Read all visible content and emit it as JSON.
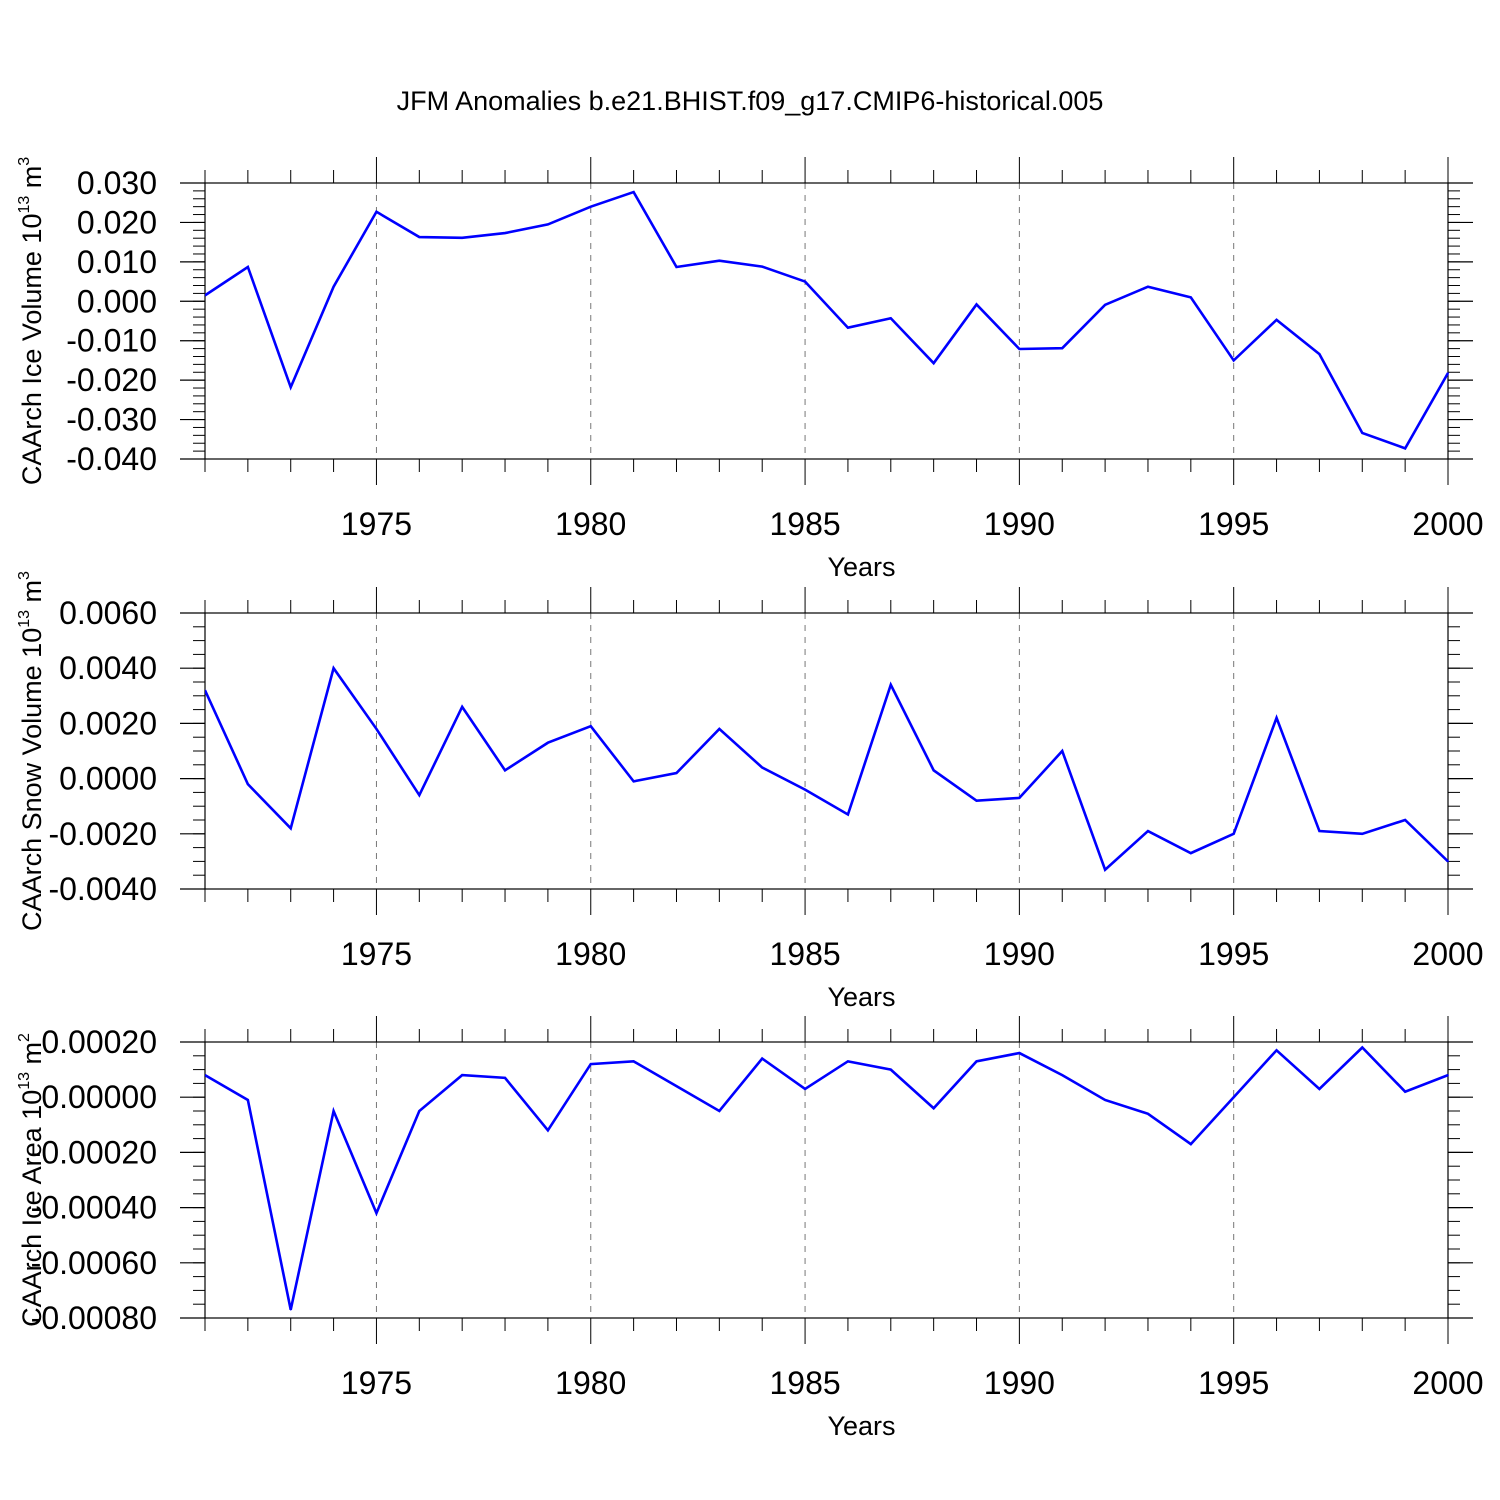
{
  "title": "JFM Anomalies b.e21.BHIST.f09_g17.CMIP6-historical.005",
  "colors": {
    "line": "#0000ff",
    "axis": "#000000",
    "grid": "#777777"
  },
  "chart_data": [
    {
      "type": "line",
      "ylabel_main": "CAArch Ice Volume 10",
      "ylabel_sup": "13",
      "ylabel_unit": " m",
      "ylabel_unit_sup": "3",
      "xlabel": "Years",
      "xlim": [
        1971,
        2000
      ],
      "ylim": [
        -0.04,
        0.03
      ],
      "x_ticks": [
        1975,
        1980,
        1985,
        1990,
        1995,
        2000
      ],
      "x_tick_labels": [
        "1975",
        "1980",
        "1985",
        "1990",
        "1995",
        "2000"
      ],
      "y_ticks": [
        0.03,
        0.02,
        0.01,
        0.0,
        -0.01,
        -0.02,
        -0.03,
        -0.04
      ],
      "y_tick_labels": [
        "0.030",
        "0.020",
        "0.010",
        "0.000",
        "-0.010",
        "-0.020",
        "-0.030",
        "-0.040"
      ],
      "y_minor_step": 0.002,
      "grid": "vertical-dashed",
      "x": [
        1971,
        1972,
        1973,
        1974,
        1975,
        1976,
        1977,
        1978,
        1979,
        1980,
        1981,
        1982,
        1983,
        1984,
        1985,
        1986,
        1987,
        1988,
        1989,
        1990,
        1991,
        1992,
        1993,
        1994,
        1995,
        1996,
        1997,
        1998,
        1999,
        2000
      ],
      "series": [
        {
          "values": [
            0.0015,
            0.0087,
            -0.0218,
            0.0037,
            0.0227,
            0.0163,
            0.0161,
            0.0173,
            0.0195,
            0.024,
            0.0277,
            0.0087,
            0.0103,
            0.0088,
            0.005,
            -0.0067,
            -0.0043,
            -0.0157,
            -0.0008,
            -0.0121,
            -0.0119,
            -0.0009,
            0.0037,
            0.001,
            -0.015,
            -0.0047,
            -0.0134,
            -0.0334,
            -0.0373,
            -0.0182
          ]
        }
      ]
    },
    {
      "type": "line",
      "ylabel_main": "CAArch Snow Volume 10",
      "ylabel_sup": "13",
      "ylabel_unit": " m",
      "ylabel_unit_sup": "3",
      "xlabel": "Years",
      "xlim": [
        1971,
        2000
      ],
      "ylim": [
        -0.004,
        0.006
      ],
      "x_ticks": [
        1975,
        1980,
        1985,
        1990,
        1995,
        2000
      ],
      "x_tick_labels": [
        "1975",
        "1980",
        "1985",
        "1990",
        "1995",
        "2000"
      ],
      "y_ticks": [
        0.006,
        0.004,
        0.002,
        0.0,
        -0.002,
        -0.004
      ],
      "y_tick_labels": [
        "0.0060",
        "0.0040",
        "0.0020",
        "0.0000",
        "-0.0020",
        "-0.0040"
      ],
      "y_minor_step": 0.0005,
      "grid": "vertical-dashed",
      "x": [
        1971,
        1972,
        1973,
        1974,
        1975,
        1976,
        1977,
        1978,
        1979,
        1980,
        1981,
        1982,
        1983,
        1984,
        1985,
        1986,
        1987,
        1988,
        1989,
        1990,
        1991,
        1992,
        1993,
        1994,
        1995,
        1996,
        1997,
        1998,
        1999,
        2000
      ],
      "series": [
        {
          "values": [
            0.0032,
            -0.0002,
            -0.0018,
            0.004,
            0.0018,
            -0.0006,
            0.0026,
            0.0003,
            0.0013,
            0.0019,
            -0.0001,
            0.0002,
            0.0018,
            0.0004,
            -0.0004,
            -0.0013,
            0.0034,
            0.0003,
            -0.0008,
            -0.0007,
            0.001,
            -0.0033,
            -0.0019,
            -0.0027,
            -0.002,
            0.0022,
            -0.0019,
            -0.002,
            -0.0015,
            -0.003
          ]
        }
      ]
    },
    {
      "type": "line",
      "ylabel_main": "CAArch Ice Area 10",
      "ylabel_sup": "13",
      "ylabel_unit": " m",
      "ylabel_unit_sup": "2",
      "xlabel": "Years",
      "xlim": [
        1971,
        2000
      ],
      "ylim": [
        -0.0008,
        0.0002
      ],
      "x_ticks": [
        1975,
        1980,
        1985,
        1990,
        1995,
        2000
      ],
      "x_tick_labels": [
        "1975",
        "1980",
        "1985",
        "1990",
        "1995",
        "2000"
      ],
      "y_ticks": [
        0.0002,
        0.0,
        -0.0002,
        -0.0004,
        -0.0006,
        -0.0008
      ],
      "y_tick_labels": [
        "0.00020",
        "0.00000",
        "-0.00020",
        "-0.00040",
        "-0.00060",
        "-0.00080"
      ],
      "y_minor_step": 5e-05,
      "grid": "vertical-dashed",
      "x": [
        1971,
        1972,
        1973,
        1974,
        1975,
        1976,
        1977,
        1978,
        1979,
        1980,
        1981,
        1982,
        1983,
        1984,
        1985,
        1986,
        1987,
        1988,
        1989,
        1990,
        1991,
        1992,
        1993,
        1994,
        1995,
        1996,
        1997,
        1998,
        1999,
        2000
      ],
      "series": [
        {
          "values": [
            8e-05,
            -1e-05,
            -0.00077,
            -5e-05,
            -0.00042,
            -5e-05,
            8e-05,
            7e-05,
            -0.00012,
            0.00012,
            0.00013,
            4e-05,
            -5e-05,
            0.00014,
            3e-05,
            0.00013,
            0.0001,
            -4e-05,
            0.00013,
            0.00016,
            8e-05,
            -1e-05,
            -6e-05,
            -0.00017,
            0.0,
            0.00017,
            3e-05,
            0.00018,
            2e-05,
            8e-05
          ]
        }
      ]
    }
  ]
}
